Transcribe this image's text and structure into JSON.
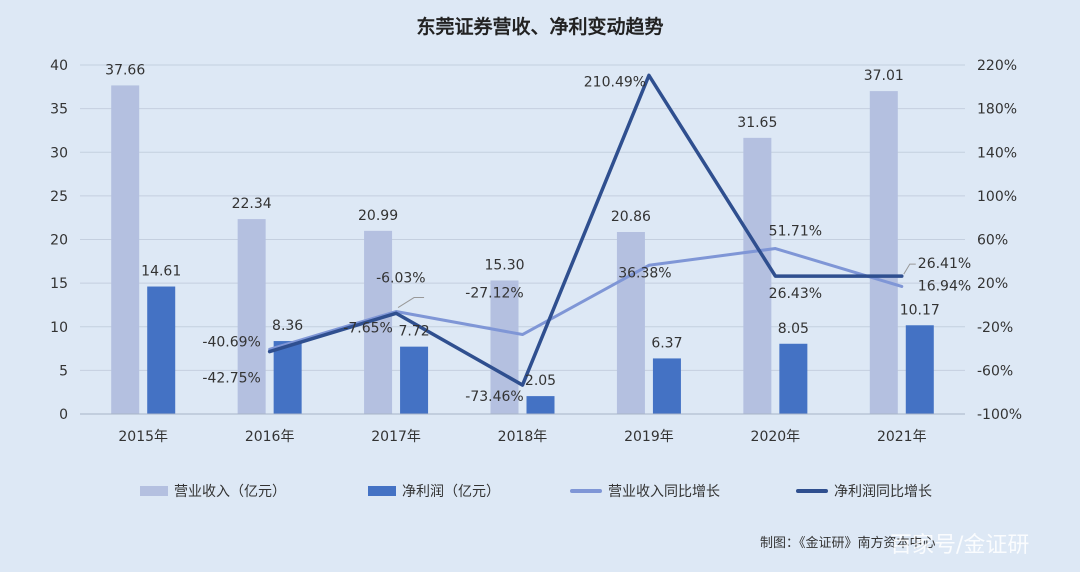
{
  "chart_data": {
    "type": "bar",
    "title": "东莞证券营收、净利变动趋势",
    "categories": [
      "2015年",
      "2016年",
      "2017年",
      "2018年",
      "2019年",
      "2020年",
      "2021年"
    ],
    "y_left": {
      "lim": [
        0,
        40
      ],
      "ticks": [
        "0",
        "5",
        "10",
        "15",
        "20",
        "25",
        "30",
        "35",
        "40"
      ]
    },
    "y_right": {
      "lim": [
        -100,
        220
      ],
      "ticks": [
        "-100%",
        "-60%",
        "-20%",
        "20%",
        "60%",
        "100%",
        "140%",
        "180%",
        "220%"
      ]
    },
    "series": [
      {
        "name": "营业收入（亿元）",
        "type": "bar",
        "axis": "left",
        "color": "#b4c0e0",
        "values": [
          37.66,
          22.34,
          20.99,
          15.3,
          20.86,
          31.65,
          37.01
        ],
        "labels": [
          "37.66",
          "22.34",
          "20.99",
          "15.30",
          "20.86",
          "31.65",
          "37.01"
        ]
      },
      {
        "name": "净利润（亿元）",
        "type": "bar",
        "axis": "left",
        "color": "#4472c4",
        "values": [
          14.61,
          8.36,
          7.72,
          2.05,
          6.37,
          8.05,
          10.17
        ],
        "labels": [
          "14.61",
          "8.36",
          "7.72",
          "2.05",
          "6.37",
          "8.05",
          "10.17"
        ]
      },
      {
        "name": "营业收入同比增长",
        "type": "line",
        "axis": "right",
        "color": "#7f96d6",
        "values": [
          null,
          -40.69,
          -6.03,
          -27.12,
          36.38,
          51.71,
          16.94
        ],
        "labels": [
          null,
          "-40.69%",
          "-6.03%",
          "-27.12%",
          "36.38%",
          "51.71%",
          "16.94%"
        ]
      },
      {
        "name": "净利润同比增长",
        "type": "line",
        "axis": "right",
        "color": "#2f4f8f",
        "values": [
          null,
          -42.75,
          -7.65,
          -73.46,
          210.49,
          26.43,
          26.41
        ],
        "labels": [
          null,
          "-42.75%",
          "-7.65%",
          "-73.46%",
          "210.49%",
          "26.43%",
          "26.41%"
        ]
      }
    ],
    "legend_position": "bottom",
    "grid": true
  },
  "footer": {
    "credit": "制图：《金证研》南方资本中心",
    "watermark": "百家号/金证研"
  }
}
